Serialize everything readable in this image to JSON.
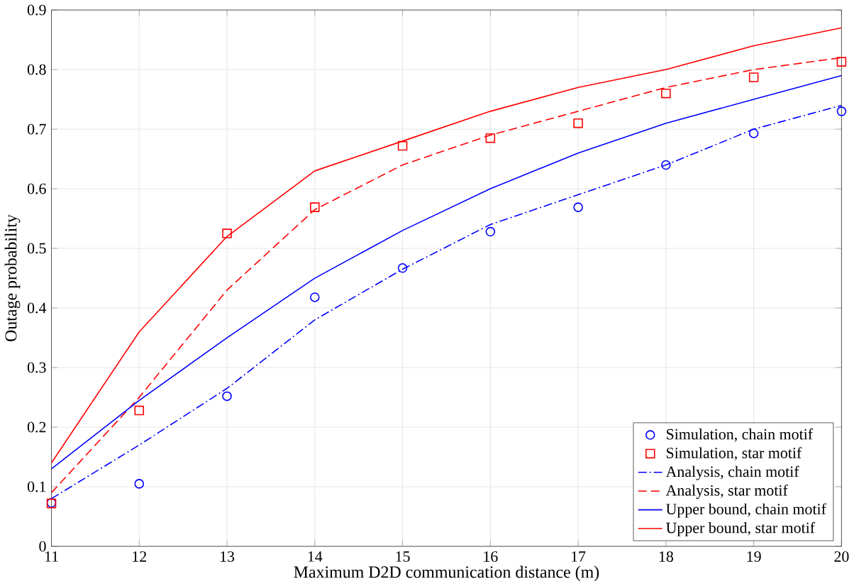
{
  "chart_data": {
    "type": "line",
    "xlabel": "Maximum D2D communication distance (m)",
    "ylabel": "Outage probability",
    "x": [
      11,
      12,
      13,
      14,
      15,
      16,
      17,
      18,
      19,
      20
    ],
    "xlim": [
      11,
      20
    ],
    "xticks": [
      11,
      12,
      13,
      14,
      15,
      16,
      17,
      18,
      19,
      20
    ],
    "ylim": [
      0,
      0.9
    ],
    "yticks": [
      0,
      0.1,
      0.2,
      0.3,
      0.4,
      0.5,
      0.6,
      0.7,
      0.8,
      0.9
    ],
    "grid": true,
    "legend": "bottom right",
    "series": [
      {
        "name": "Simulation, chain motif",
        "type": "scatter",
        "marker": "circle",
        "color": "#0000ff",
        "values": [
          0.073,
          0.105,
          0.252,
          0.418,
          0.467,
          0.528,
          0.569,
          0.64,
          0.693,
          0.73
        ]
      },
      {
        "name": "Simulation, star motif",
        "type": "scatter",
        "marker": "square",
        "color": "#ff0000",
        "values": [
          0.072,
          0.228,
          0.525,
          0.569,
          0.672,
          0.685,
          0.71,
          0.76,
          0.787,
          0.813
        ]
      },
      {
        "name": "Analysis, chain motif",
        "line_style": "dashdot",
        "color": "#0000ff",
        "values": [
          0.08,
          0.17,
          0.265,
          0.38,
          0.465,
          0.54,
          0.59,
          0.64,
          0.7,
          0.74
        ]
      },
      {
        "name": "Analysis, star motif",
        "line_style": "dashed",
        "color": "#ff0000",
        "values": [
          0.09,
          0.25,
          0.43,
          0.565,
          0.64,
          0.69,
          0.73,
          0.77,
          0.8,
          0.82
        ]
      },
      {
        "name": "Upper bound, chain motif",
        "line_style": "solid",
        "color": "#0000ff",
        "values": [
          0.13,
          0.245,
          0.35,
          0.45,
          0.53,
          0.6,
          0.66,
          0.71,
          0.75,
          0.79
        ]
      },
      {
        "name": "Upper bound, star motif",
        "line_style": "solid",
        "color": "#ff0000",
        "values": [
          0.14,
          0.36,
          0.52,
          0.63,
          0.68,
          0.73,
          0.77,
          0.8,
          0.84,
          0.87
        ]
      }
    ]
  }
}
